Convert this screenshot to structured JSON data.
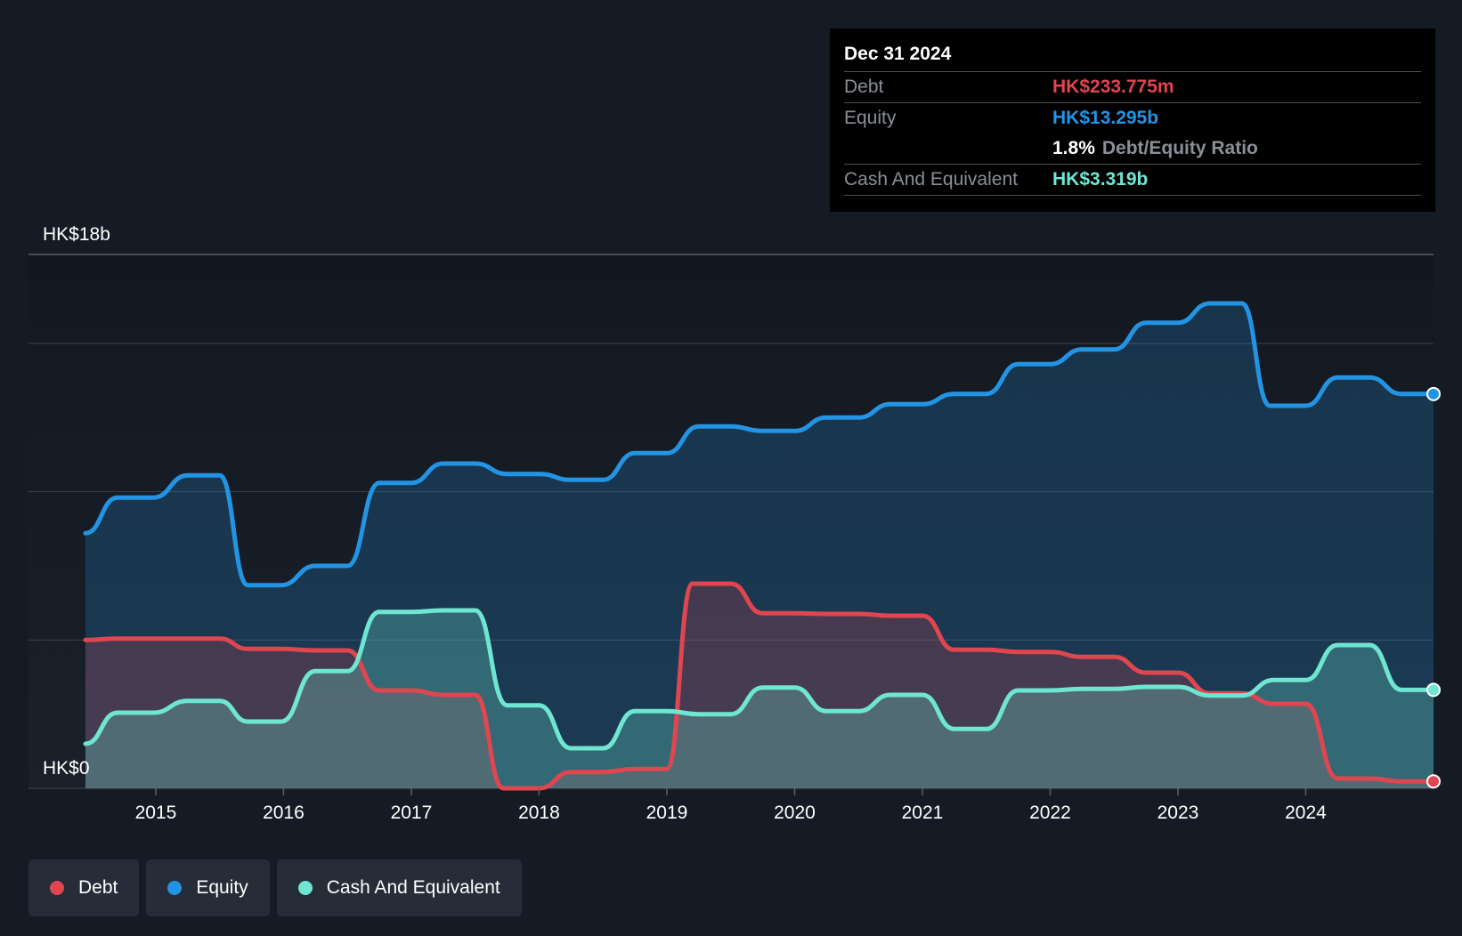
{
  "colors": {
    "debt": "#e0464f",
    "equity": "#2394e4",
    "cash": "#6ee6d2",
    "grid": "#3a414b",
    "tick": "#ffffff"
  },
  "tooltip": {
    "date": "Dec 31 2024",
    "debt_label": "Debt",
    "debt_value": "HK$233.775m",
    "equity_label": "Equity",
    "equity_value": "HK$13.295b",
    "ratio_value": "1.8%",
    "ratio_label": "Debt/Equity Ratio",
    "cash_label": "Cash And Equivalent",
    "cash_value": "HK$3.319b"
  },
  "legend": [
    {
      "label": "Debt",
      "color": "#e0464f"
    },
    {
      "label": "Equity",
      "color": "#2394e4"
    },
    {
      "label": "Cash And Equivalent",
      "color": "#6ee6d2"
    }
  ],
  "chart_data": {
    "type": "area",
    "ylim": [
      0,
      18
    ],
    "y_unit": "HK$ billions",
    "y_tick_labels": [
      {
        "value": 18,
        "label": "HK$18b"
      },
      {
        "value": 0,
        "label": "HK$0"
      }
    ],
    "xlim": [
      2014.45,
      2025.0
    ],
    "x_ticks": [
      2015,
      2016,
      2017,
      2018,
      2019,
      2020,
      2021,
      2022,
      2023,
      2024
    ],
    "grid": true,
    "gridlines": [
      0,
      5,
      10,
      15,
      18
    ],
    "legend_position": "bottom-left",
    "series": [
      {
        "name": "Equity",
        "color": "#2394e4",
        "points": [
          [
            2014.45,
            8.6
          ],
          [
            2014.7,
            9.8
          ],
          [
            2014.98,
            9.8
          ],
          [
            2015.25,
            10.55
          ],
          [
            2015.5,
            10.55
          ],
          [
            2015.72,
            6.85
          ],
          [
            2015.98,
            6.85
          ],
          [
            2016.25,
            7.5
          ],
          [
            2016.5,
            7.5
          ],
          [
            2016.75,
            10.3
          ],
          [
            2017.0,
            10.3
          ],
          [
            2017.25,
            10.95
          ],
          [
            2017.5,
            10.95
          ],
          [
            2017.75,
            10.6
          ],
          [
            2018.0,
            10.6
          ],
          [
            2018.25,
            10.4
          ],
          [
            2018.5,
            10.4
          ],
          [
            2018.75,
            11.3
          ],
          [
            2019.0,
            11.3
          ],
          [
            2019.25,
            12.2
          ],
          [
            2019.5,
            12.2
          ],
          [
            2019.75,
            12.05
          ],
          [
            2020.0,
            12.05
          ],
          [
            2020.25,
            12.5
          ],
          [
            2020.5,
            12.5
          ],
          [
            2020.75,
            12.95
          ],
          [
            2021.0,
            12.95
          ],
          [
            2021.25,
            13.3
          ],
          [
            2021.5,
            13.3
          ],
          [
            2021.75,
            14.3
          ],
          [
            2022.0,
            14.3
          ],
          [
            2022.25,
            14.8
          ],
          [
            2022.5,
            14.8
          ],
          [
            2022.75,
            15.7
          ],
          [
            2023.0,
            15.7
          ],
          [
            2023.25,
            16.35
          ],
          [
            2023.5,
            16.35
          ],
          [
            2023.72,
            12.9
          ],
          [
            2024.0,
            12.9
          ],
          [
            2024.25,
            13.85
          ],
          [
            2024.5,
            13.85
          ],
          [
            2024.75,
            13.3
          ],
          [
            2025.0,
            13.295
          ]
        ]
      },
      {
        "name": "Debt",
        "color": "#e0464f",
        "points": [
          [
            2014.45,
            5.0
          ],
          [
            2014.7,
            5.05
          ],
          [
            2014.98,
            5.05
          ],
          [
            2015.25,
            5.05
          ],
          [
            2015.5,
            5.05
          ],
          [
            2015.72,
            4.7
          ],
          [
            2015.98,
            4.7
          ],
          [
            2016.25,
            4.65
          ],
          [
            2016.5,
            4.65
          ],
          [
            2016.75,
            3.3
          ],
          [
            2017.0,
            3.3
          ],
          [
            2017.25,
            3.15
          ],
          [
            2017.5,
            3.15
          ],
          [
            2017.72,
            0.0
          ],
          [
            2018.0,
            0.0
          ],
          [
            2018.25,
            0.55
          ],
          [
            2018.5,
            0.55
          ],
          [
            2018.75,
            0.65
          ],
          [
            2019.0,
            0.65
          ],
          [
            2019.2,
            6.9
          ],
          [
            2019.5,
            6.9
          ],
          [
            2019.75,
            5.9
          ],
          [
            2020.0,
            5.9
          ],
          [
            2020.25,
            5.88
          ],
          [
            2020.5,
            5.88
          ],
          [
            2020.75,
            5.82
          ],
          [
            2021.0,
            5.82
          ],
          [
            2021.25,
            4.67
          ],
          [
            2021.5,
            4.67
          ],
          [
            2021.75,
            4.6
          ],
          [
            2022.0,
            4.6
          ],
          [
            2022.25,
            4.43
          ],
          [
            2022.5,
            4.43
          ],
          [
            2022.75,
            3.9
          ],
          [
            2023.0,
            3.9
          ],
          [
            2023.25,
            3.2
          ],
          [
            2023.5,
            3.2
          ],
          [
            2023.75,
            2.85
          ],
          [
            2024.0,
            2.85
          ],
          [
            2024.25,
            0.33
          ],
          [
            2024.5,
            0.33
          ],
          [
            2024.75,
            0.234
          ],
          [
            2025.0,
            0.234
          ]
        ]
      },
      {
        "name": "Cash And Equivalent",
        "color": "#6ee6d2",
        "points": [
          [
            2014.45,
            1.5
          ],
          [
            2014.7,
            2.55
          ],
          [
            2014.98,
            2.55
          ],
          [
            2015.25,
            2.95
          ],
          [
            2015.5,
            2.95
          ],
          [
            2015.72,
            2.25
          ],
          [
            2015.98,
            2.25
          ],
          [
            2016.25,
            3.95
          ],
          [
            2016.5,
            3.95
          ],
          [
            2016.75,
            5.95
          ],
          [
            2017.0,
            5.95
          ],
          [
            2017.25,
            6.0
          ],
          [
            2017.5,
            6.0
          ],
          [
            2017.75,
            2.8
          ],
          [
            2018.0,
            2.8
          ],
          [
            2018.25,
            1.35
          ],
          [
            2018.5,
            1.35
          ],
          [
            2018.75,
            2.6
          ],
          [
            2019.0,
            2.6
          ],
          [
            2019.25,
            2.5
          ],
          [
            2019.5,
            2.5
          ],
          [
            2019.75,
            3.4
          ],
          [
            2020.0,
            3.4
          ],
          [
            2020.25,
            2.6
          ],
          [
            2020.5,
            2.6
          ],
          [
            2020.75,
            3.15
          ],
          [
            2021.0,
            3.15
          ],
          [
            2021.25,
            2.0
          ],
          [
            2021.5,
            2.0
          ],
          [
            2021.75,
            3.3
          ],
          [
            2022.0,
            3.3
          ],
          [
            2022.25,
            3.35
          ],
          [
            2022.5,
            3.35
          ],
          [
            2022.75,
            3.42
          ],
          [
            2023.0,
            3.42
          ],
          [
            2023.25,
            3.13
          ],
          [
            2023.5,
            3.13
          ],
          [
            2023.75,
            3.65
          ],
          [
            2024.0,
            3.65
          ],
          [
            2024.25,
            4.83
          ],
          [
            2024.5,
            4.83
          ],
          [
            2024.75,
            3.319
          ],
          [
            2025.0,
            3.319
          ]
        ]
      }
    ]
  }
}
